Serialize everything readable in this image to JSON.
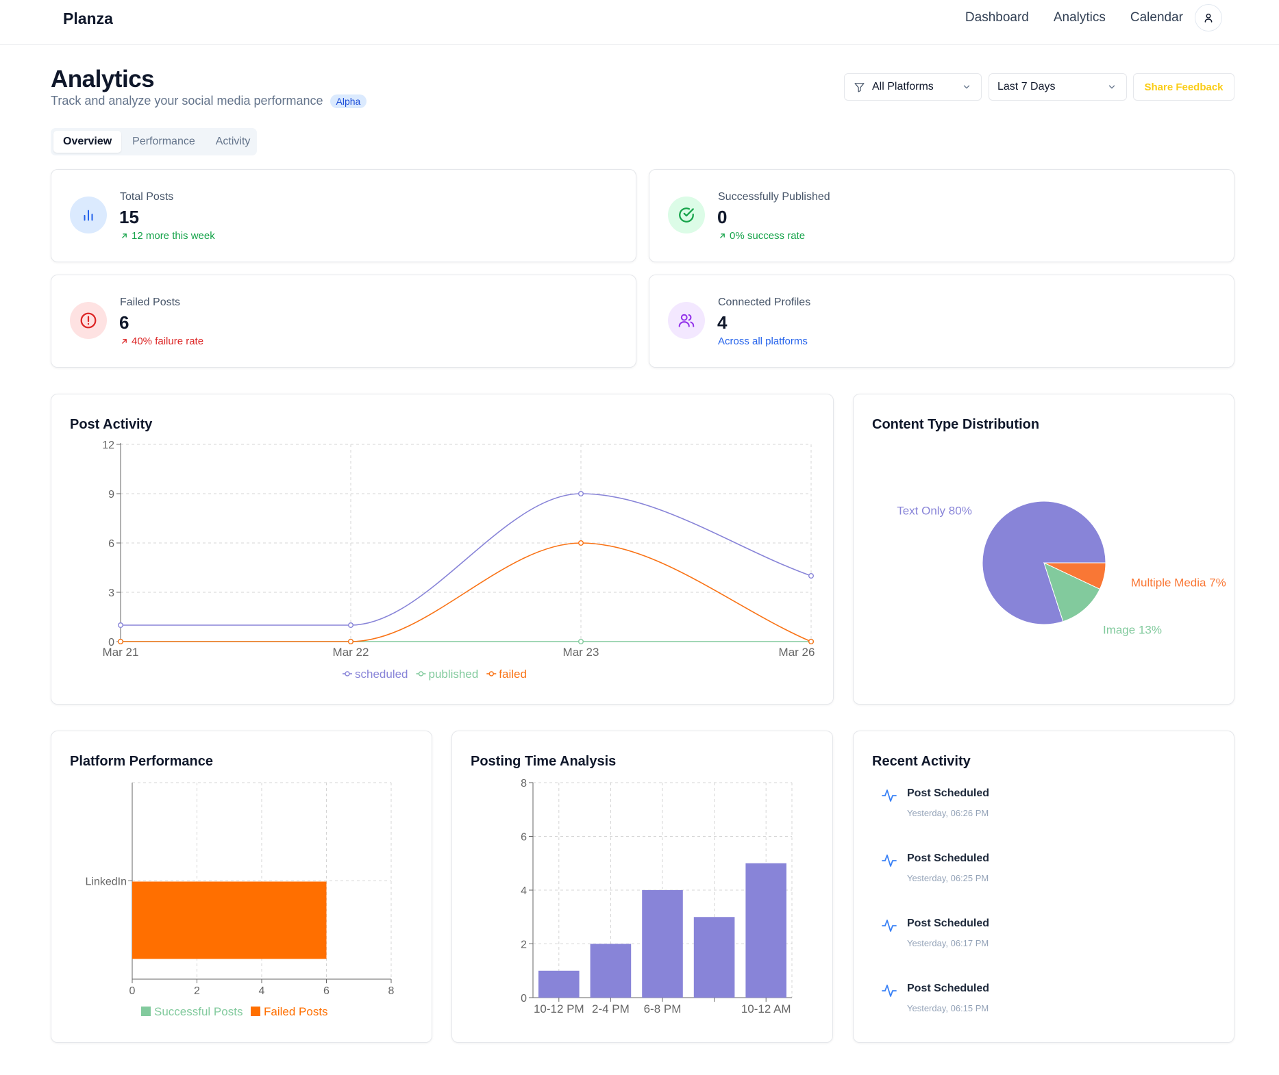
{
  "nav": {
    "brand": "Planza",
    "links": [
      "Dashboard",
      "Analytics",
      "Calendar"
    ]
  },
  "header": {
    "title": "Analytics",
    "subtitle": "Track and analyze your social media performance",
    "badge": "Alpha"
  },
  "filters": {
    "platform": "All Platforms",
    "range": "Last 7 Days",
    "feedback": "Share Feedback"
  },
  "tabs": [
    "Overview",
    "Performance",
    "Activity"
  ],
  "stats": {
    "total": {
      "label": "Total Posts",
      "value": "15",
      "sub": "12 more this week"
    },
    "published": {
      "label": "Successfully Published",
      "value": "0",
      "sub": "0% success rate"
    },
    "failed": {
      "label": "Failed Posts",
      "value": "6",
      "sub": "40% failure rate"
    },
    "profiles": {
      "label": "Connected Profiles",
      "value": "4",
      "sub": "Across all platforms"
    }
  },
  "colors": {
    "scheduled": "#8884d8",
    "published": "#82ca9d",
    "failed": "#f97316",
    "failed_bar": "#ff6f00",
    "text_only": "#8884d8",
    "image": "#82ca9d",
    "multiple_media": "#f97735"
  },
  "cards": {
    "post_activity": "Post Activity",
    "content_type": "Content Type Distribution",
    "platform_performance": "Platform Performance",
    "posting_time": "Posting Time Analysis",
    "recent_activity": "Recent Activity"
  },
  "chart_data": [
    {
      "type": "line",
      "title": "Post Activity",
      "x": [
        "Mar 21",
        "Mar 22",
        "Mar 23",
        "Mar 26"
      ],
      "ylim": [
        0,
        12
      ],
      "yticks": [
        0,
        3,
        6,
        9,
        12
      ],
      "grid": true,
      "legend": "bottom",
      "series": [
        {
          "name": "scheduled",
          "values": [
            1,
            1,
            9,
            4
          ]
        },
        {
          "name": "published",
          "values": [
            0,
            0,
            0,
            0
          ]
        },
        {
          "name": "failed",
          "values": [
            0,
            0,
            6,
            0
          ]
        }
      ]
    },
    {
      "type": "pie",
      "title": "Content Type Distribution",
      "slices": [
        {
          "name": "Text Only",
          "label": "Text Only 80%",
          "value": 80
        },
        {
          "name": "Image",
          "label": "Image 13%",
          "value": 13
        },
        {
          "name": "Multiple Media",
          "label": "Multiple Media 7%",
          "value": 7
        }
      ]
    },
    {
      "type": "bar",
      "orientation": "horizontal",
      "title": "Platform Performance",
      "categories": [
        "LinkedIn"
      ],
      "xlim": [
        0,
        8
      ],
      "xticks": [
        0,
        2,
        4,
        6,
        8
      ],
      "grid": true,
      "legend": "bottom",
      "series": [
        {
          "name": "Successful Posts",
          "values": [
            0
          ]
        },
        {
          "name": "Failed Posts",
          "values": [
            6
          ]
        }
      ]
    },
    {
      "type": "bar",
      "title": "Posting Time Analysis",
      "categories": [
        "10-12 PM",
        "2-4 PM",
        "6-8 PM",
        "",
        "10-12 AM"
      ],
      "values": [
        1,
        2,
        4,
        3,
        5
      ],
      "ylim": [
        0,
        8
      ],
      "yticks": [
        0,
        2,
        4,
        6,
        8
      ],
      "grid": true
    }
  ],
  "recent_activity": [
    {
      "title": "Post Scheduled",
      "time": "Yesterday, 06:26 PM"
    },
    {
      "title": "Post Scheduled",
      "time": "Yesterday, 06:25 PM"
    },
    {
      "title": "Post Scheduled",
      "time": "Yesterday, 06:17 PM"
    },
    {
      "title": "Post Scheduled",
      "time": "Yesterday, 06:15 PM"
    }
  ]
}
